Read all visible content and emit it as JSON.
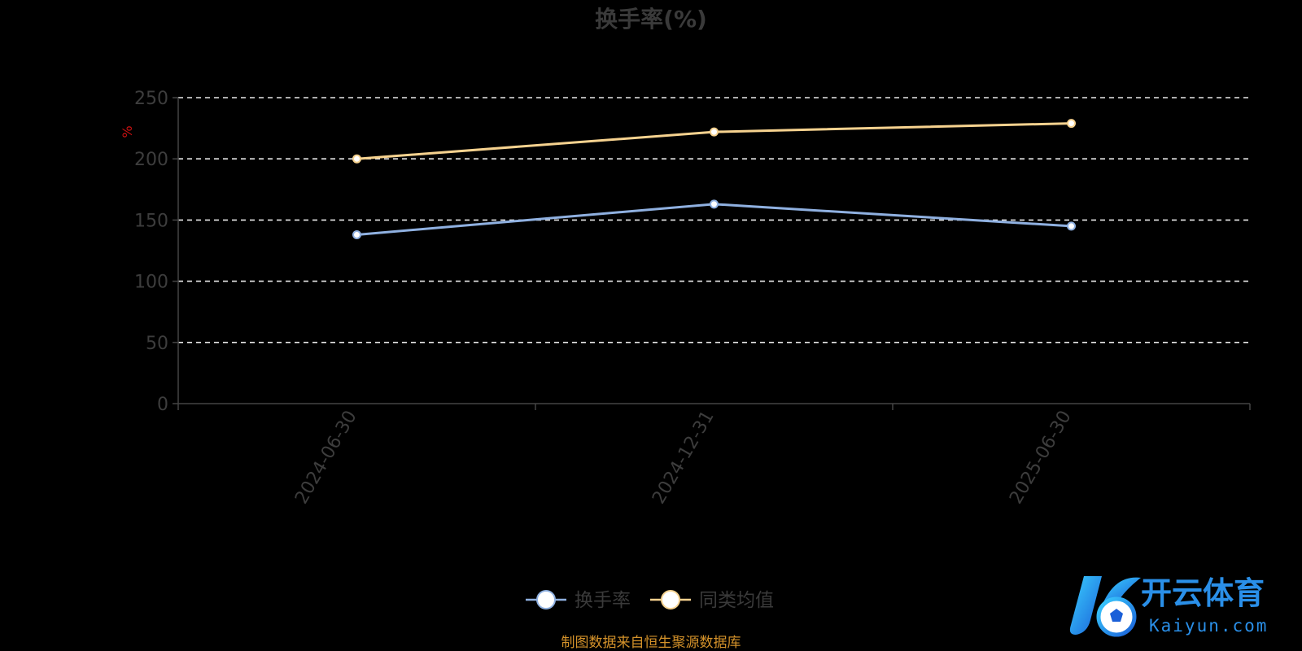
{
  "chart_data": {
    "type": "line",
    "title": "换手率(%)",
    "ylabel": "%",
    "categories": [
      "2024-06-30",
      "2024-12-31",
      "2025-06-30"
    ],
    "ylim": [
      0,
      250
    ],
    "yticks": [
      0,
      50,
      100,
      150,
      200,
      250
    ],
    "grid": true,
    "legend_position": "bottom-center",
    "series": [
      {
        "name": "换手率",
        "values": [
          138,
          163,
          145
        ],
        "color": "#8fb0e0"
      },
      {
        "name": "同类均值",
        "values": [
          200,
          222,
          229
        ],
        "color": "#f6d28f"
      }
    ]
  },
  "source": "制图数据来自恒生聚源数据库",
  "watermark": {
    "brand": "开云体育",
    "domain": "Kaiyun.com"
  }
}
